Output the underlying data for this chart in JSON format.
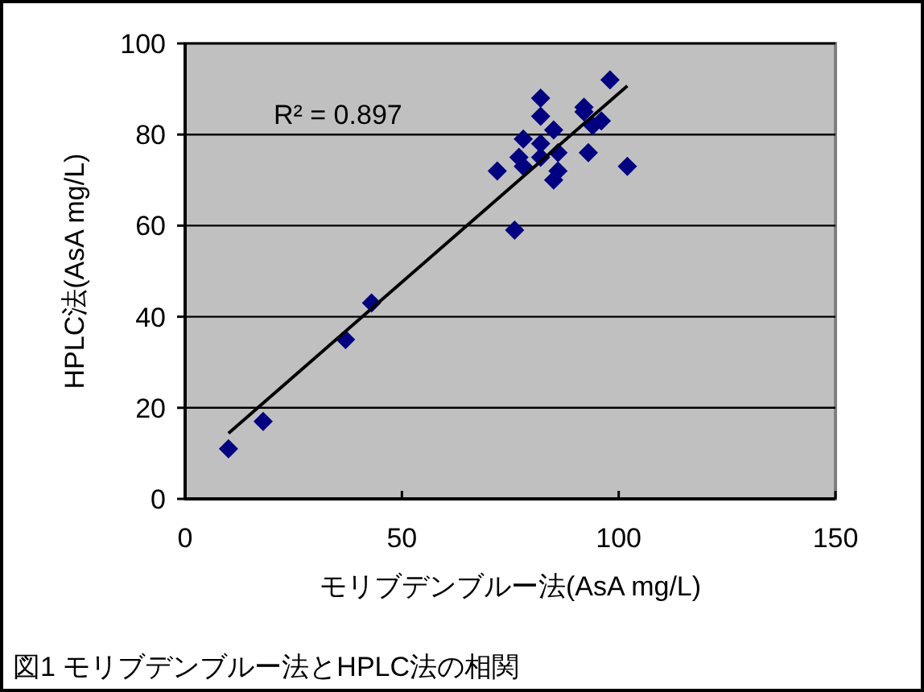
{
  "chart_data": {
    "type": "scatter",
    "xlabel": "モリブデンブルー法(AsA mg/L)",
    "ylabel": "HPLC法(AsA mg/L)",
    "xlim": [
      0,
      150
    ],
    "ylim": [
      0,
      100
    ],
    "xticks": [
      0,
      50,
      100,
      150
    ],
    "yticks": [
      0,
      20,
      40,
      60,
      80,
      100
    ],
    "grid": "y",
    "marker": "diamond",
    "series": [
      {
        "color": "#000080",
        "x": [
          98,
          82,
          82,
          92,
          92,
          96,
          94,
          85,
          78,
          82,
          77,
          78,
          82,
          86,
          72,
          86,
          85,
          93,
          102,
          76,
          10,
          18,
          37,
          43
        ],
        "values": [
          92,
          88,
          84,
          86,
          85,
          83,
          82,
          81,
          79,
          78,
          75,
          73,
          75,
          76,
          72,
          72,
          70,
          76,
          73,
          59,
          11,
          17,
          35,
          43
        ]
      },
      {
        "type": "line",
        "color": "#000000",
        "marker": "none",
        "x": [
          10,
          102
        ],
        "values": [
          14.4,
          90.7
        ]
      }
    ],
    "annotations": [
      "R² = 0.897",
      "図1 モリブデンブルー法とHPLC法の相関"
    ]
  }
}
